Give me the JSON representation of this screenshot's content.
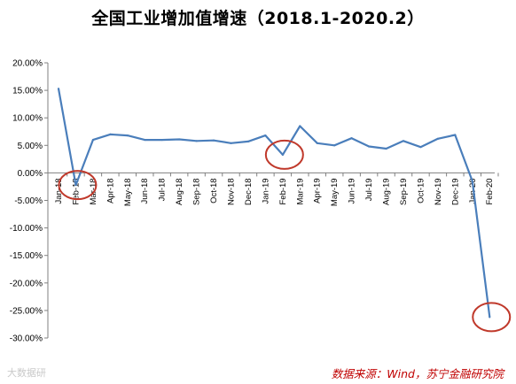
{
  "chart_title": "全国工业增加值增速（2018.1-2020.2）",
  "source_note": "数据来源：Wind，苏宁金融研究院",
  "watermark_text": "大数据研",
  "colors": {
    "line": "#4a7ebb",
    "highlight_circle": "#c0392b",
    "axis": "#808080",
    "source_text": "#c00000"
  },
  "chart_data": {
    "type": "line",
    "title": "全国工业增加值增速（2018.1-2020.2）",
    "xlabel": "",
    "ylabel": "",
    "ylim": [
      -30,
      20
    ],
    "y_ticks": [
      "20.00%",
      "15.00%",
      "10.00%",
      "5.00%",
      "0.00%",
      "-5.00%",
      "-10.00%",
      "-15.00%",
      "-20.00%",
      "-25.00%",
      "-30.00%"
    ],
    "y_tick_values": [
      20,
      15,
      10,
      5,
      0,
      -5,
      -10,
      -15,
      -20,
      -25,
      -30
    ],
    "grid": false,
    "categories": [
      "Jan-18",
      "Feb-18",
      "Mar-18",
      "Apr-18",
      "May-18",
      "Jun-18",
      "Jul-18",
      "Aug-18",
      "Sep-18",
      "Oct-18",
      "Nov-18",
      "Dec-18",
      "Jan-19",
      "Feb-19",
      "Mar-19",
      "Apr-19",
      "May-19",
      "Jun-19",
      "Jul-19",
      "Aug-19",
      "Sep-19",
      "Oct-19",
      "Nov-19",
      "Dec-19",
      "Jan-20",
      "Feb-20"
    ],
    "series": [
      {
        "values": [
          15.3,
          -2.2,
          6.0,
          7.0,
          6.8,
          6.0,
          6.0,
          6.1,
          5.8,
          5.9,
          5.4,
          5.7,
          6.8,
          3.3,
          8.5,
          5.4,
          5.0,
          6.3,
          4.8,
          4.4,
          5.8,
          4.7,
          6.2,
          6.9,
          -1.5,
          -26.2
        ]
      }
    ],
    "highlighted_points": [
      "Feb-18",
      "Feb-19",
      "Feb-20"
    ]
  }
}
